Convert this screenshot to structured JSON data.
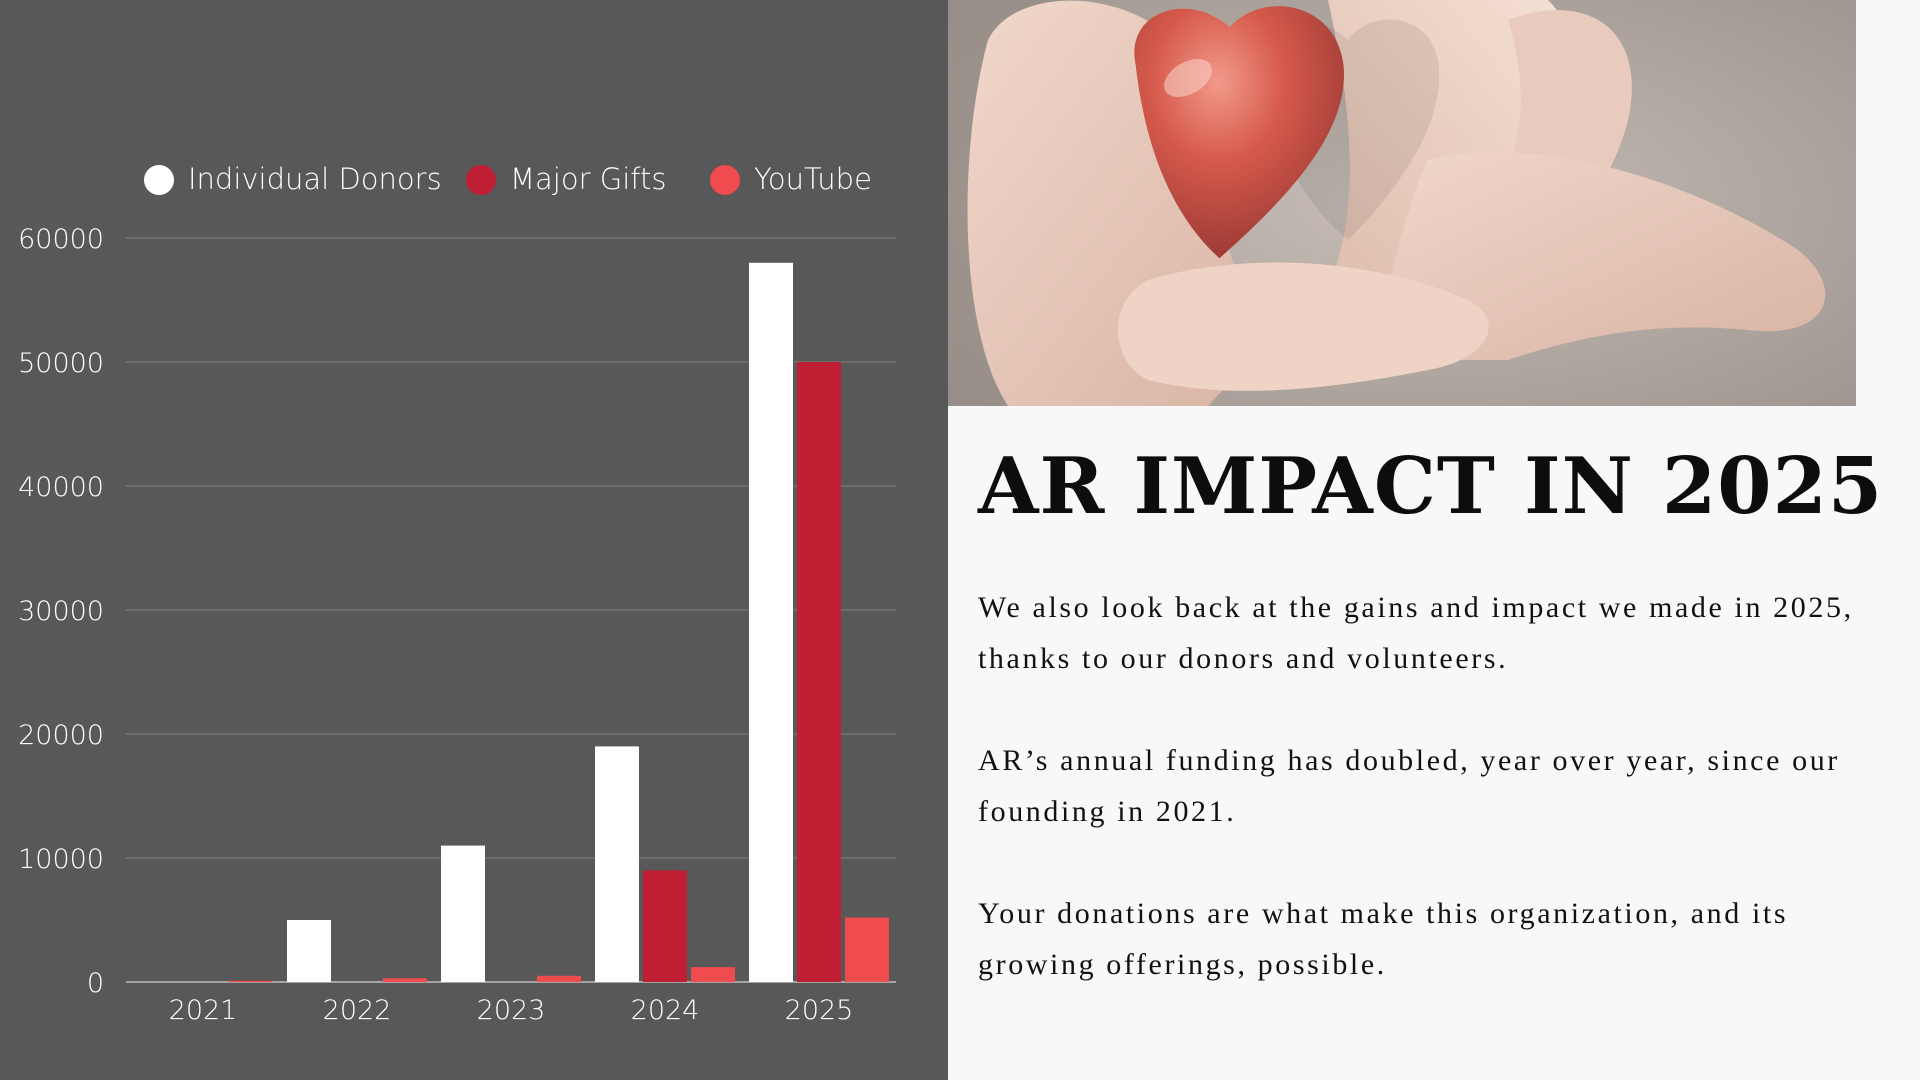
{
  "chart_data": {
    "type": "bar",
    "categories": [
      "2021",
      "2022",
      "2023",
      "2024",
      "2025"
    ],
    "series": [
      {
        "name": "Individual Donors",
        "color": "#ffffff",
        "values": [
          0,
          5000,
          11000,
          19000,
          58000
        ]
      },
      {
        "name": "Major Gifts",
        "color": "#c01e33",
        "values": [
          0,
          0,
          0,
          9000,
          50000
        ]
      },
      {
        "name": "YouTube",
        "color": "#f04b4f",
        "values": [
          100,
          300,
          500,
          1200,
          5200
        ]
      }
    ],
    "ylim": [
      0,
      60000
    ],
    "yticks": [
      0,
      10000,
      20000,
      30000,
      40000,
      50000,
      60000
    ],
    "legend_position": "top",
    "grid": true
  },
  "slide": {
    "title": "AR IMPACT IN 2025",
    "paragraphs": [
      "We also look back at the gains and impact we made in 2025, thanks to our donors and volunteers.",
      "AR’s annual funding has doubled, year over year, since our founding in 2021.",
      "Your donations are what make this organization, and its growing offerings, possible."
    ]
  },
  "colors": {
    "chart_background": "#585858",
    "page_background": "#f8f8f8"
  }
}
